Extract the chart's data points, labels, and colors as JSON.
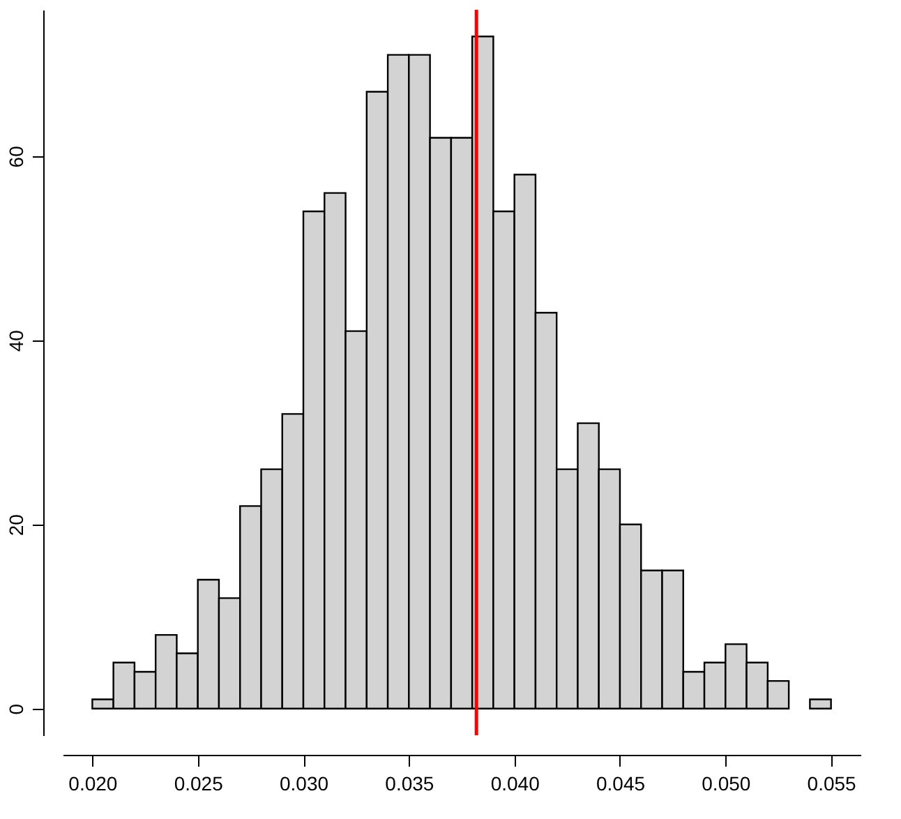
{
  "chart_data": {
    "type": "histogram",
    "bins": [
      0.02,
      0.021,
      0.022,
      0.023,
      0.024,
      0.025,
      0.026,
      0.027,
      0.028,
      0.029,
      0.03,
      0.031,
      0.032,
      0.033,
      0.034,
      0.035,
      0.036,
      0.037,
      0.038,
      0.039,
      0.04,
      0.041,
      0.042,
      0.043,
      0.044,
      0.045,
      0.046,
      0.047,
      0.048,
      0.049,
      0.05,
      0.051,
      0.052,
      0.053,
      0.054,
      0.055
    ],
    "values": [
      1,
      5,
      4,
      8,
      6,
      14,
      12,
      22,
      26,
      32,
      54,
      56,
      41,
      67,
      71,
      71,
      62,
      62,
      73,
      54,
      58,
      43,
      26,
      31,
      26,
      20,
      15,
      15,
      4,
      5,
      7,
      5,
      3,
      0,
      1
    ],
    "color": "#d3d3d3",
    "xlim": [
      0.0186,
      0.0564
    ],
    "ylim": [
      -2.9,
      75.9
    ],
    "xticks": [
      {
        "value": 0.02,
        "label": "0.020"
      },
      {
        "value": 0.025,
        "label": "0.025"
      },
      {
        "value": 0.03,
        "label": "0.030"
      },
      {
        "value": 0.035,
        "label": "0.035"
      },
      {
        "value": 0.04,
        "label": "0.040"
      },
      {
        "value": 0.045,
        "label": "0.045"
      },
      {
        "value": 0.05,
        "label": "0.050"
      },
      {
        "value": 0.055,
        "label": "0.055"
      }
    ],
    "yticks": [
      0,
      20,
      40,
      60
    ],
    "ref_lines": [
      {
        "axis": "x",
        "value": 0.0382,
        "color": "#ff0000"
      }
    ],
    "grid": false
  }
}
